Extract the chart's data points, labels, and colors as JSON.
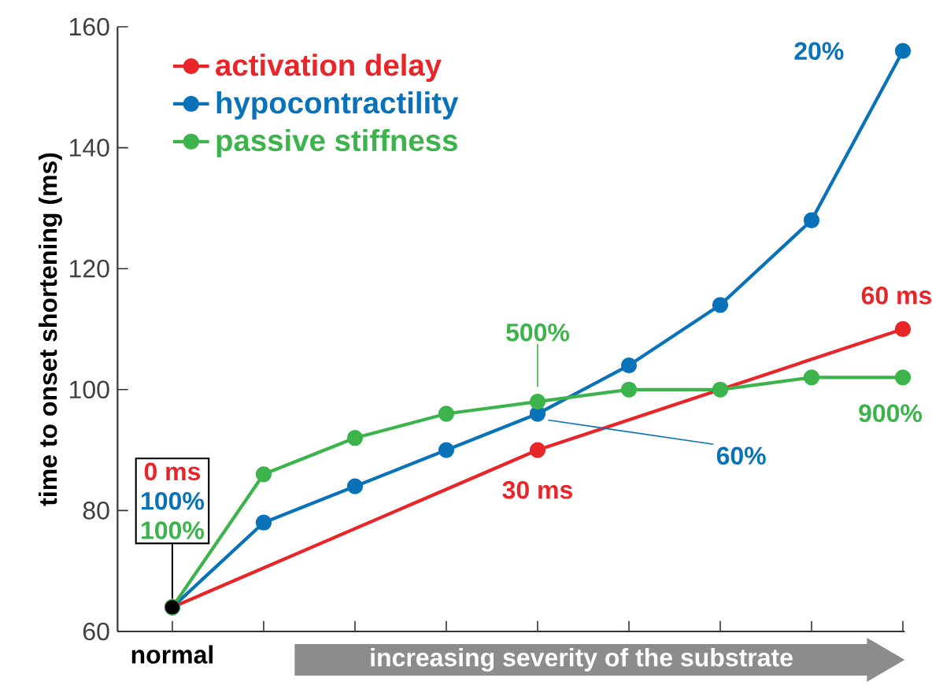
{
  "chart_data": {
    "type": "line",
    "ylabel": "time to onset shortening (ms)",
    "xlabel": "increasing severity of the substrate",
    "categories": [
      "normal",
      null,
      null,
      null,
      null,
      null,
      null,
      null,
      null
    ],
    "ylim": [
      60,
      160
    ],
    "yticks": [
      60,
      80,
      100,
      120,
      140,
      160
    ],
    "legend": "top left",
    "marker": "circle",
    "grid": false,
    "series": [
      {
        "name": "activation delay",
        "color": "#e8262a",
        "values": [
          64,
          null,
          null,
          null,
          90,
          null,
          null,
          null,
          110
        ]
      },
      {
        "name": "hypocontractility",
        "color": "#0a72b8",
        "values": [
          64,
          78,
          84,
          90,
          96,
          104,
          114,
          128,
          156
        ]
      },
      {
        "name": "passive stiffness",
        "color": "#3cb44b",
        "values": [
          64,
          86,
          92,
          96,
          98,
          100,
          100,
          102,
          102
        ]
      },
      {
        "type": "scatter",
        "color": "#000000",
        "values": [
          64,
          null,
          null,
          null,
          null,
          null,
          null,
          null,
          null
        ]
      }
    ],
    "annotations": [
      "0 ms",
      "100%",
      "100%",
      "30 ms",
      "60%",
      "500%",
      "60 ms",
      "20%",
      "900%"
    ]
  }
}
